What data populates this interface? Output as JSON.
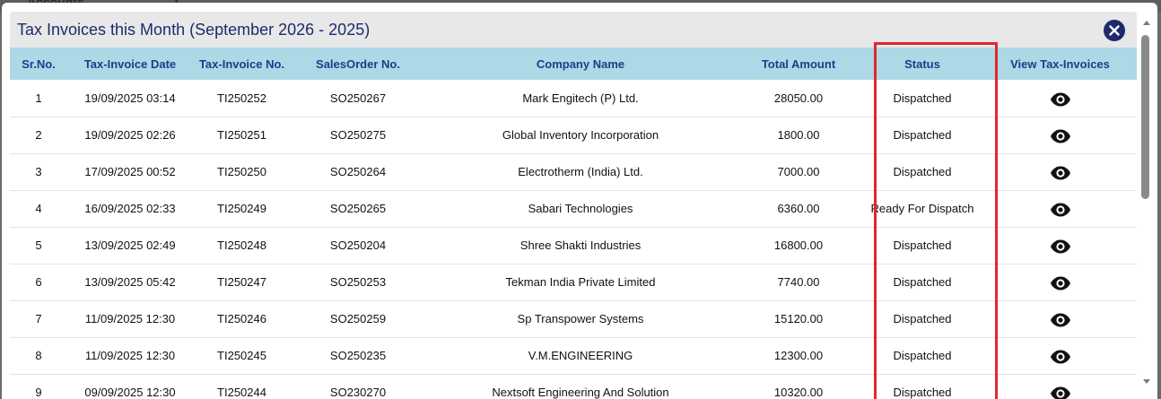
{
  "background": {
    "text": "Accounts"
  },
  "modal": {
    "title": "Tax Invoices this Month (September 2026 - 2025)",
    "close_icon": "close-circle-icon"
  },
  "table": {
    "columns": [
      "Sr.No.",
      "Tax-Invoice Date",
      "Tax-Invoice No.",
      "SalesOrder No.",
      "Company Name",
      "Total Amount",
      "Status",
      "View Tax-Invoices"
    ],
    "rows": [
      {
        "sr": "1",
        "date": "19/09/2025 03:14",
        "invoice": "TI250252",
        "order": "SO250267",
        "company": "Mark Engitech (P) Ltd.",
        "amount": "28050.00",
        "status": "Dispatched"
      },
      {
        "sr": "2",
        "date": "19/09/2025 02:26",
        "invoice": "TI250251",
        "order": "SO250275",
        "company": "Global Inventory Incorporation",
        "amount": "1800.00",
        "status": "Dispatched"
      },
      {
        "sr": "3",
        "date": "17/09/2025 00:52",
        "invoice": "TI250250",
        "order": "SO250264",
        "company": "Electrotherm (India) Ltd.",
        "amount": "7000.00",
        "status": "Dispatched"
      },
      {
        "sr": "4",
        "date": "16/09/2025 02:33",
        "invoice": "TI250249",
        "order": "SO250265",
        "company": "Sabari Technologies",
        "amount": "6360.00",
        "status": "Ready For Dispatch"
      },
      {
        "sr": "5",
        "date": "13/09/2025 02:49",
        "invoice": "TI250248",
        "order": "SO250204",
        "company": "Shree Shakti Industries",
        "amount": "16800.00",
        "status": "Dispatched"
      },
      {
        "sr": "6",
        "date": "13/09/2025 05:42",
        "invoice": "TI250247",
        "order": "SO250253",
        "company": "Tekman India Private Limited",
        "amount": "7740.00",
        "status": "Dispatched"
      },
      {
        "sr": "7",
        "date": "11/09/2025 12:30",
        "invoice": "TI250246",
        "order": "SO250259",
        "company": "Sp Transpower Systems",
        "amount": "15120.00",
        "status": "Dispatched"
      },
      {
        "sr": "8",
        "date": "11/09/2025 12:30",
        "invoice": "TI250245",
        "order": "SO250235",
        "company": "V.M.ENGINEERING",
        "amount": "12300.00",
        "status": "Dispatched"
      },
      {
        "sr": "9",
        "date": "09/09/2025 12:30",
        "invoice": "TI250244",
        "order": "SO230270",
        "company": "Nextsoft Engineering And Solution",
        "amount": "10320.00",
        "status": "Dispatched"
      }
    ],
    "view_icon": "eye-icon"
  },
  "colors": {
    "header_bg": "#add8e6",
    "header_text": "#1f3c8a",
    "title_text": "#1f2a6b",
    "highlight": "#e3262b"
  }
}
